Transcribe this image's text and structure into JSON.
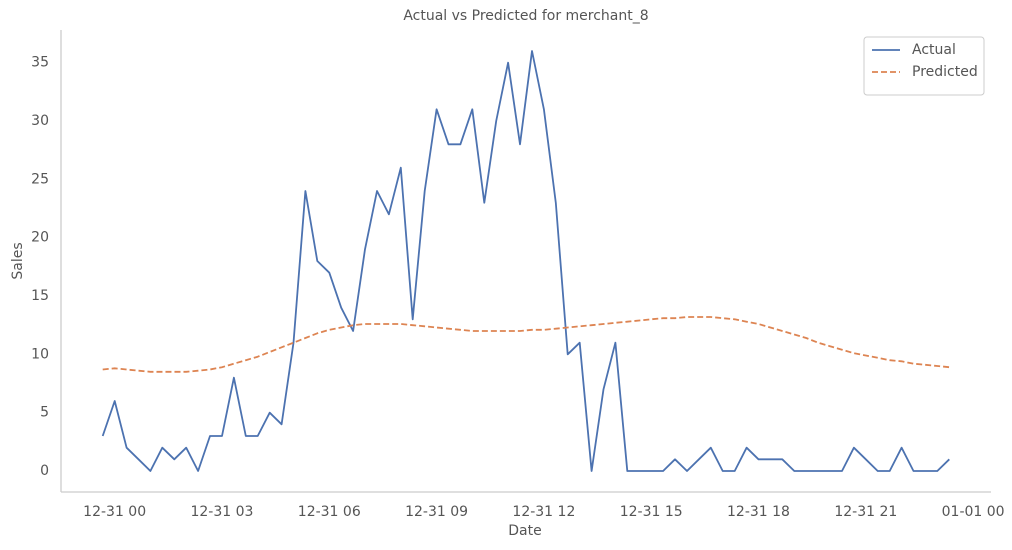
{
  "chart_data": {
    "type": "line",
    "title": "Actual vs Predicted for merchant_8",
    "x_label": "Date",
    "y_label": "Sales",
    "x": [
      "12-30 23:40",
      "12-31 00:00",
      "12-31 00:20",
      "12-31 00:40",
      "12-31 01:00",
      "12-31 01:20",
      "12-31 01:40",
      "12-31 02:00",
      "12-31 02:20",
      "12-31 02:40",
      "12-31 03:00",
      "12-31 03:20",
      "12-31 03:40",
      "12-31 04:00",
      "12-31 04:20",
      "12-31 04:40",
      "12-31 05:00",
      "12-31 05:20",
      "12-31 05:40",
      "12-31 06:00",
      "12-31 06:20",
      "12-31 06:40",
      "12-31 07:00",
      "12-31 07:20",
      "12-31 07:40",
      "12-31 08:00",
      "12-31 08:20",
      "12-31 08:40",
      "12-31 09:00",
      "12-31 09:20",
      "12-31 09:40",
      "12-31 10:00",
      "12-31 10:20",
      "12-31 10:40",
      "12-31 11:00",
      "12-31 11:20",
      "12-31 11:40",
      "12-31 12:00",
      "12-31 12:20",
      "12-31 12:40",
      "12-31 13:00",
      "12-31 13:20",
      "12-31 13:40",
      "12-31 14:00",
      "12-31 14:20",
      "12-31 14:40",
      "12-31 15:00",
      "12-31 15:20",
      "12-31 15:40",
      "12-31 16:00",
      "12-31 16:20",
      "12-31 16:40",
      "12-31 17:00",
      "12-31 17:20",
      "12-31 17:40",
      "12-31 18:00",
      "12-31 18:20",
      "12-31 18:40",
      "12-31 19:00",
      "12-31 19:20",
      "12-31 19:40",
      "12-31 20:00",
      "12-31 20:20",
      "12-31 20:40",
      "12-31 21:00",
      "12-31 21:20",
      "12-31 21:40",
      "12-31 22:00",
      "12-31 22:20",
      "12-31 22:40",
      "12-31 23:00",
      "12-31 23:20"
    ],
    "series": [
      {
        "name": "Actual",
        "color": "#4c72b0",
        "dash": false,
        "values": [
          3,
          6,
          2,
          1,
          0,
          2,
          1,
          2,
          0,
          3,
          3,
          8,
          3,
          3,
          5,
          4,
          11,
          24,
          18,
          17,
          14,
          12,
          19,
          24,
          22,
          26,
          13,
          24,
          31,
          28,
          28,
          31,
          23,
          30,
          35,
          28,
          36,
          31,
          23,
          10,
          11,
          0,
          7,
          11,
          0,
          0,
          0,
          0,
          1,
          0,
          1,
          2,
          0,
          0,
          2,
          1,
          1,
          1,
          0,
          0,
          0,
          0,
          0,
          2,
          1,
          0,
          0,
          2,
          0,
          0,
          0,
          1
        ]
      },
      {
        "name": "Predicted",
        "color": "#dd8452",
        "dash": true,
        "values": [
          8.7,
          8.8,
          8.7,
          8.6,
          8.5,
          8.5,
          8.5,
          8.5,
          8.6,
          8.7,
          8.9,
          9.2,
          9.5,
          9.8,
          10.2,
          10.6,
          11.0,
          11.4,
          11.8,
          12.1,
          12.3,
          12.5,
          12.6,
          12.6,
          12.6,
          12.6,
          12.5,
          12.4,
          12.3,
          12.2,
          12.1,
          12.0,
          12.0,
          12.0,
          12.0,
          12.0,
          12.1,
          12.1,
          12.2,
          12.3,
          12.4,
          12.5,
          12.6,
          12.7,
          12.8,
          12.9,
          13.0,
          13.1,
          13.1,
          13.2,
          13.2,
          13.2,
          13.1,
          13.0,
          12.8,
          12.6,
          12.3,
          12.0,
          11.7,
          11.4,
          11.0,
          10.7,
          10.4,
          10.1,
          9.9,
          9.7,
          9.5,
          9.4,
          9.2,
          9.1,
          9.0,
          8.9
        ]
      }
    ],
    "xlim": [
      "12-30 22:30",
      "01-01 00:30"
    ],
    "xticks": [
      "12-31 00",
      "12-31 03",
      "12-31 06",
      "12-31 09",
      "12-31 12",
      "12-31 15",
      "12-31 18",
      "12-31 21",
      "01-01 00"
    ],
    "ylim": [
      -1.8,
      37.8
    ],
    "yticks": [
      0,
      5,
      10,
      15,
      20,
      25,
      30,
      35
    ],
    "grid": false,
    "legend": "upper right"
  }
}
